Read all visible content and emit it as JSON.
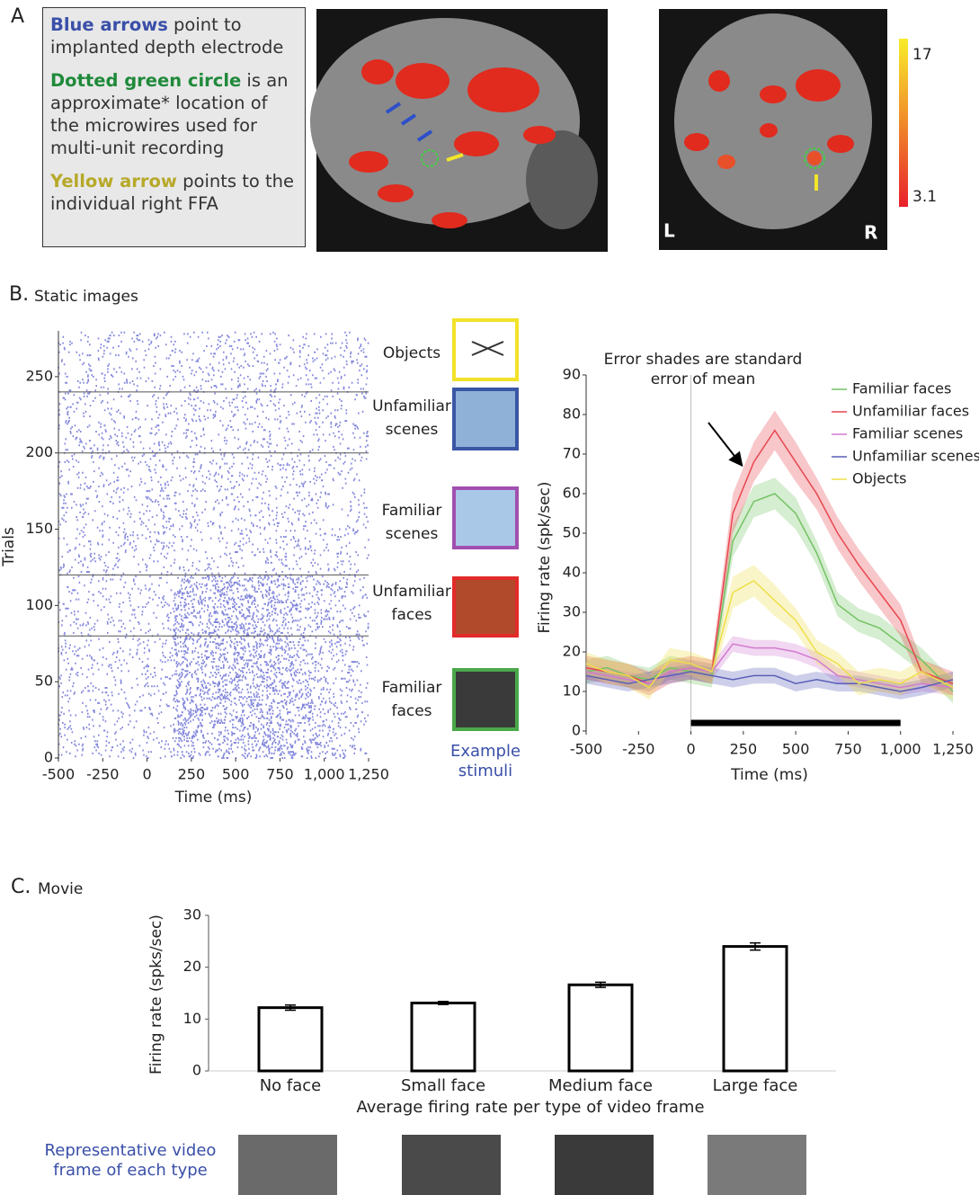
{
  "panel_a": {
    "label": "A",
    "legend": [
      {
        "highlight": "Blue arrows",
        "text": " point to implanted depth electrode"
      },
      {
        "highlight": "Dotted green circle",
        "text": " is an approximate* location of the microwires used for multi-unit recording"
      },
      {
        "highlight": "Yellow arrow",
        "text": " points to the individual right FFA"
      }
    ],
    "colorbar": {
      "max": 17,
      "min": 3.1
    },
    "orientation": [
      "L",
      "R"
    ]
  },
  "panel_b": {
    "label": "B.",
    "title": "Static images"
  },
  "panel_c": {
    "label": "C.",
    "title": "Movie",
    "frames_caption": [
      "Representative video",
      "frame of each type"
    ]
  },
  "chart_data": [
    {
      "type": "raster",
      "ylabel": "Trials",
      "xlabel": "Time (ms)",
      "color": "#5a5fd0",
      "xlim": [
        -500,
        1250
      ],
      "ylim": [
        0,
        280
      ],
      "xticks": [
        -500,
        -250,
        0,
        250,
        500,
        750,
        {
          "value": 1000,
          "label": "1,000"
        },
        {
          "value": 1250,
          "label": "1,250"
        }
      ],
      "yticks": [
        0,
        50,
        100,
        150,
        200,
        250
      ],
      "dividers": [
        80,
        120,
        200,
        240
      ],
      "stimuli": [
        {
          "label": [
            "Objects"
          ]
        },
        {
          "label": [
            "Unfamiliar",
            "scenes"
          ]
        },
        {
          "label": [
            "Familiar",
            "scenes"
          ]
        },
        {
          "label": [
            "Unfamiliar",
            "faces"
          ]
        },
        {
          "label": [
            "Familiar",
            "faces"
          ]
        }
      ],
      "stimuli_caption": [
        "Example",
        "stimuli"
      ]
    },
    {
      "type": "line",
      "annotation": [
        "Error shades are standard",
        "error of mean"
      ],
      "ylabel": "Firing rate (spk/sec)",
      "xlabel": "Time (ms)",
      "xlim": [
        -500,
        1250
      ],
      "ylim": [
        0,
        90
      ],
      "xticks": [
        -500,
        -250,
        0,
        250,
        500,
        750,
        {
          "value": 1000,
          "label": "1,000"
        },
        {
          "value": 1250,
          "label": "1,250"
        }
      ],
      "yticks": [
        0,
        10,
        20,
        30,
        40,
        50,
        60,
        70,
        80,
        90
      ],
      "stimulus_bar": [
        0,
        1000
      ],
      "legend": "upper right",
      "x": [
        -500,
        -400,
        -300,
        -200,
        -100,
        0,
        100,
        200,
        300,
        400,
        500,
        600,
        700,
        800,
        900,
        1000,
        1100,
        1250
      ],
      "series": [
        {
          "name": "Familiar faces",
          "color": "#74c365",
          "values": [
            15,
            16,
            14,
            13,
            16,
            15,
            14,
            48,
            58,
            60,
            55,
            45,
            32,
            28,
            26,
            22,
            18,
            10
          ],
          "errors": [
            3,
            3,
            3,
            3,
            3,
            3,
            3,
            4,
            4,
            4,
            4,
            3,
            3,
            3,
            3,
            3,
            3,
            3
          ]
        },
        {
          "name": "Unfamiliar faces",
          "color": "#e8474f",
          "values": [
            16,
            15,
            14,
            12,
            15,
            16,
            15,
            55,
            68,
            76,
            68,
            60,
            50,
            42,
            35,
            28,
            15,
            12
          ],
          "errors": [
            3,
            3,
            3,
            3,
            3,
            3,
            3,
            5,
            5,
            5,
            5,
            4,
            4,
            4,
            4,
            4,
            3,
            3
          ]
        },
        {
          "name": "Familiar scenes",
          "color": "#d27ad0",
          "values": [
            15,
            14,
            13,
            12,
            15,
            16,
            15,
            22,
            21,
            21,
            20,
            18,
            14,
            13,
            12,
            11,
            12,
            11
          ],
          "errors": [
            2,
            2,
            2,
            2,
            2,
            2,
            2,
            2,
            2,
            2,
            2,
            2,
            2,
            2,
            2,
            2,
            2,
            2
          ]
        },
        {
          "name": "Unfamiliar scenes",
          "color": "#5a5fb8",
          "values": [
            14,
            13,
            12,
            13,
            14,
            15,
            14,
            13,
            14,
            14,
            12,
            13,
            12,
            12,
            11,
            10,
            11,
            13
          ],
          "errors": [
            2,
            2,
            2,
            2,
            2,
            2,
            2,
            2,
            2,
            2,
            2,
            2,
            2,
            2,
            2,
            2,
            2,
            2
          ]
        },
        {
          "name": "Objects",
          "color": "#eede4a",
          "values": [
            17,
            15,
            14,
            11,
            18,
            17,
            15,
            35,
            38,
            33,
            28,
            20,
            17,
            12,
            13,
            12,
            15,
            11
          ],
          "errors": [
            3,
            3,
            3,
            3,
            3,
            3,
            3,
            4,
            4,
            4,
            3,
            3,
            3,
            3,
            3,
            3,
            3,
            3
          ]
        }
      ]
    },
    {
      "type": "bar",
      "ylabel": "Firing rate (spks/sec)",
      "xlabel": "Average firing rate per type of video frame",
      "categories": [
        "No face",
        "Small face",
        "Medium face",
        "Large face"
      ],
      "values": [
        12.2,
        13.1,
        16.6,
        24.0
      ],
      "errors": [
        0.5,
        0.3,
        0.5,
        0.7
      ],
      "color": "#000000",
      "ylim": [
        0,
        30
      ],
      "yticks": [
        0,
        10,
        20,
        30
      ]
    }
  ]
}
